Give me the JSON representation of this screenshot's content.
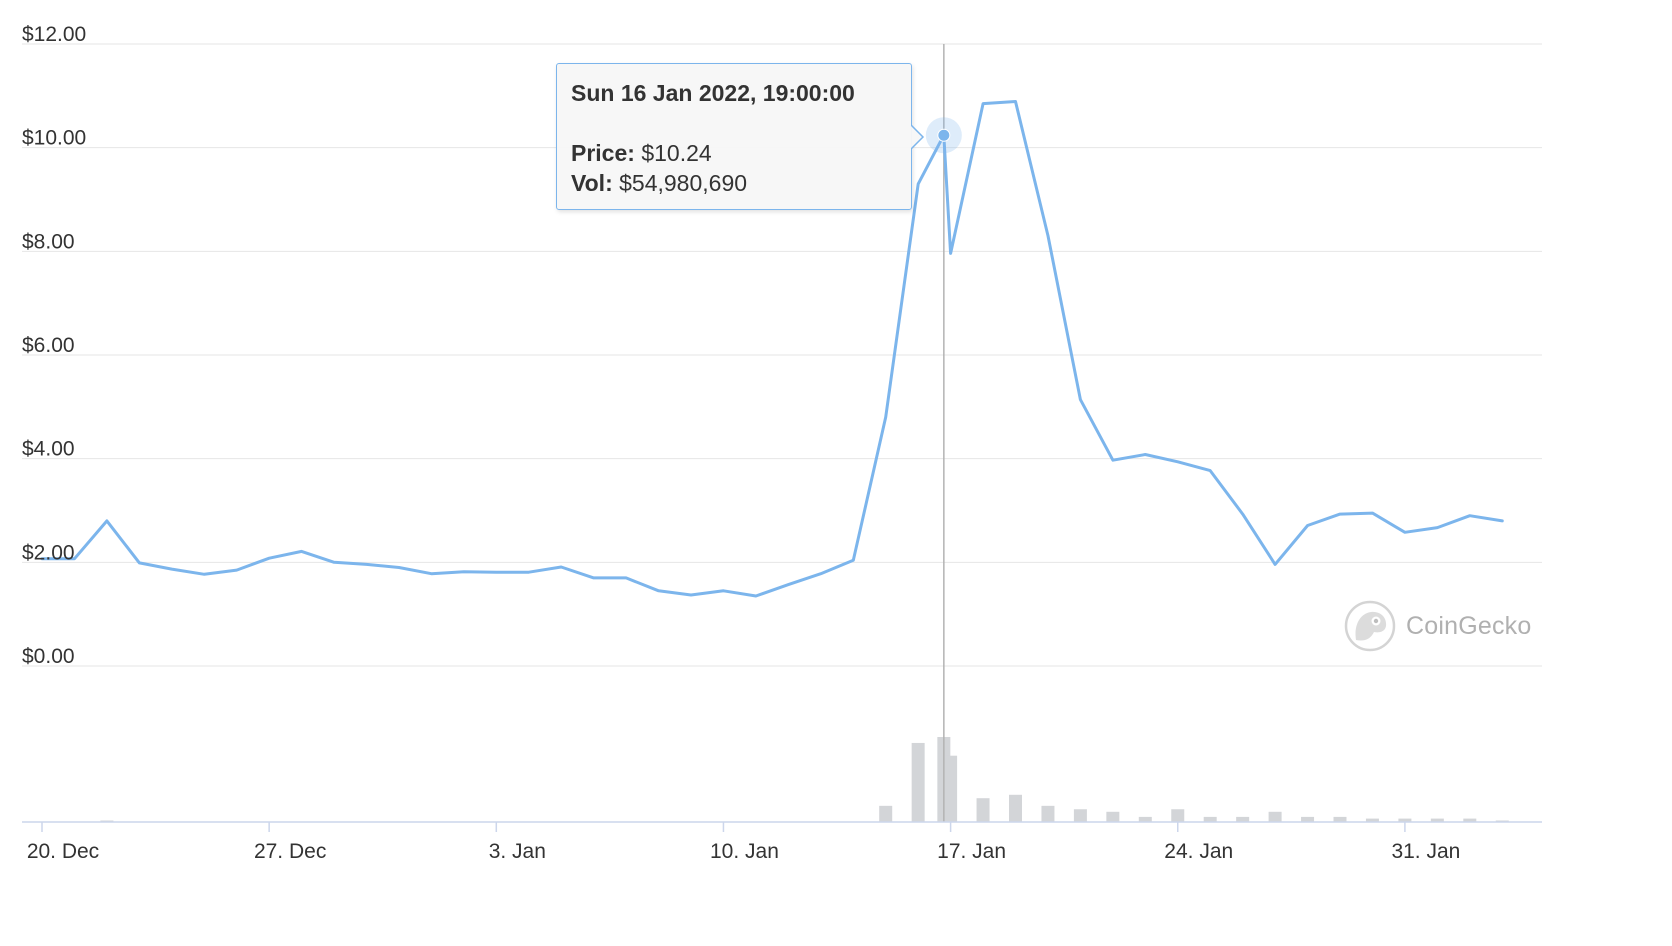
{
  "chart_data": {
    "type": "line",
    "y_axis": {
      "ticks": [
        "$0.00",
        "$2.00",
        "$4.00",
        "$6.00",
        "$8.00",
        "$10.00",
        "$12.00"
      ],
      "ylim": [
        0,
        12
      ]
    },
    "x_axis": {
      "ticks": [
        "20. Dec",
        "27. Dec",
        "3. Jan",
        "10. Jan",
        "17. Jan",
        "24. Jan",
        "31. Jan"
      ]
    },
    "series": [
      {
        "values": [
          [
            "2021-12-20",
            2.07
          ],
          [
            "2021-12-21",
            2.07
          ],
          [
            "2021-12-22",
            2.8
          ],
          [
            "2021-12-23",
            1.99
          ],
          [
            "2021-12-24",
            1.87
          ],
          [
            "2021-12-25",
            1.77
          ],
          [
            "2021-12-26",
            1.85
          ],
          [
            "2021-12-27",
            2.08
          ],
          [
            "2021-12-28",
            2.21
          ],
          [
            "2021-12-29",
            2.0
          ],
          [
            "2021-12-30",
            1.96
          ],
          [
            "2021-12-31",
            1.9
          ],
          [
            "2022-01-01",
            1.78
          ],
          [
            "2022-01-02",
            1.82
          ],
          [
            "2022-01-03",
            1.81
          ],
          [
            "2022-01-04",
            1.81
          ],
          [
            "2022-01-05",
            1.91
          ],
          [
            "2022-01-06",
            1.7
          ],
          [
            "2022-01-07",
            1.7
          ],
          [
            "2022-01-08",
            1.45
          ],
          [
            "2022-01-09",
            1.37
          ],
          [
            "2022-01-10",
            1.45
          ],
          [
            "2022-01-11",
            1.35
          ],
          [
            "2022-01-12",
            1.57
          ],
          [
            "2022-01-13",
            1.78
          ],
          [
            "2022-01-14",
            2.04
          ],
          [
            "2022-01-15",
            4.8
          ],
          [
            "2022-01-16",
            9.3
          ],
          [
            "2022-01-16T19:00",
            10.24
          ],
          [
            "2022-01-17",
            7.96
          ],
          [
            "2022-01-18",
            10.85
          ],
          [
            "2022-01-19",
            10.89
          ],
          [
            "2022-01-20",
            8.3
          ],
          [
            "2022-01-21",
            5.14
          ],
          [
            "2022-01-22",
            3.97
          ],
          [
            "2022-01-23",
            4.08
          ],
          [
            "2022-01-24",
            3.94
          ],
          [
            "2022-01-25",
            3.77
          ],
          [
            "2022-01-26",
            2.93
          ],
          [
            "2022-01-27",
            1.96
          ],
          [
            "2022-01-28",
            2.71
          ],
          [
            "2022-01-29",
            2.93
          ],
          [
            "2022-01-30",
            2.95
          ],
          [
            "2022-01-31",
            2.58
          ],
          [
            "2022-02-01",
            2.67
          ],
          [
            "2022-02-02",
            2.9
          ],
          [
            "2022-02-03",
            2.8
          ]
        ]
      }
    ],
    "volume": {
      "unit": "relative",
      "values": [
        [
          "2021-12-22",
          0.01
        ],
        [
          "2022-01-15",
          0.19
        ],
        [
          "2022-01-16",
          0.93
        ],
        [
          "2022-01-16T19:00",
          1.0
        ],
        [
          "2022-01-17",
          0.78
        ],
        [
          "2022-01-18",
          0.28
        ],
        [
          "2022-01-19",
          0.32
        ],
        [
          "2022-01-20",
          0.19
        ],
        [
          "2022-01-21",
          0.15
        ],
        [
          "2022-01-22",
          0.12
        ],
        [
          "2022-01-23",
          0.06
        ],
        [
          "2022-01-24",
          0.15
        ],
        [
          "2022-01-25",
          0.06
        ],
        [
          "2022-01-26",
          0.06
        ],
        [
          "2022-01-27",
          0.12
        ],
        [
          "2022-01-28",
          0.06
        ],
        [
          "2022-01-29",
          0.06
        ],
        [
          "2022-01-30",
          0.04
        ],
        [
          "2022-01-31",
          0.04
        ],
        [
          "2022-02-01",
          0.04
        ],
        [
          "2022-02-02",
          0.04
        ],
        [
          "2022-02-03",
          0.01
        ]
      ]
    },
    "highlight": {
      "x": "2022-01-16T19:00",
      "y": 10.24
    },
    "grid": true,
    "colors": {
      "line": "#7cb5ec",
      "volume": "#d3d5d8",
      "grid": "#e6e6e6",
      "crosshair": "#b3b3b3"
    }
  },
  "tooltip": {
    "date": "Sun 16 Jan 2022, 19:00:00",
    "price_label": "Price:",
    "price_value": "$10.24",
    "vol_label": "Vol:",
    "vol_value": "$54,980,690"
  },
  "watermark": {
    "text": "CoinGecko",
    "icon": "gecko-logo-icon"
  }
}
